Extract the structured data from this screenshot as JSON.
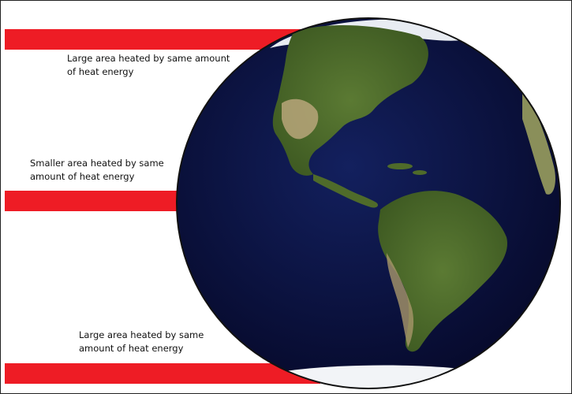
{
  "colors": {
    "beam": "#ee1c25",
    "ocean": "#0b1547",
    "land": "#4f6b2a",
    "ice": "#f2f4f7"
  },
  "labels": {
    "top_line1": "Large area heated by same amount",
    "top_line2": "of heat energy",
    "mid_line1": "Smaller area heated by same",
    "mid_line2": "amount of heat energy",
    "bottom_line1": "Large area heated by same",
    "bottom_line2": "amount of heat energy"
  },
  "icons": {
    "globe": "earth-globe-americas"
  }
}
